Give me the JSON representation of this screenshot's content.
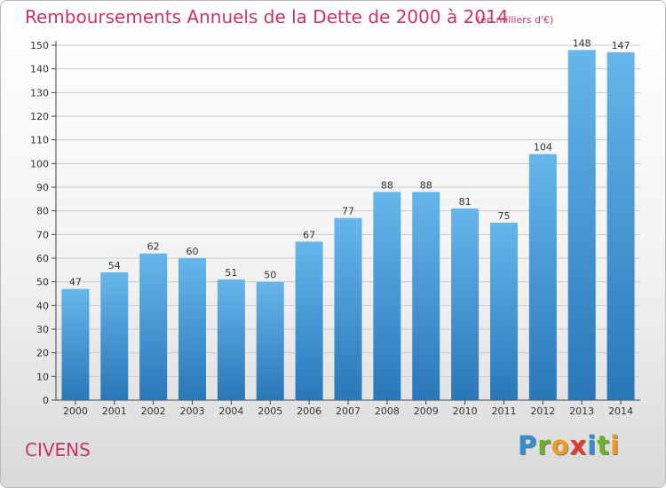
{
  "header": {
    "title": "Remboursements Annuels de la Dette de 2000 à 2014",
    "unit": "(en milliers d'€)"
  },
  "footer": {
    "place": "CIVENS",
    "logo_letters": [
      "P",
      "r",
      "o",
      "x",
      "i",
      "t",
      "i"
    ],
    "logo_colors": [
      "#2f8fd0",
      "#6ab02b",
      "#f29a1f",
      "#e23b2e",
      "#2f8fd0",
      "#6ab02b",
      "#f29a1f"
    ]
  },
  "colors": {
    "bar_top": "#66b6ec",
    "bar_bottom": "#2a77b8",
    "grid": "#c9c9c9",
    "axis": "#444444"
  },
  "chart_data": {
    "type": "bar",
    "title": "Remboursements Annuels de la Dette de 2000 à 2014",
    "subtitle": "(en milliers d'€)",
    "categories": [
      "2000",
      "2001",
      "2002",
      "2003",
      "2004",
      "2005",
      "2006",
      "2007",
      "2008",
      "2009",
      "2010",
      "2011",
      "2012",
      "2013",
      "2014"
    ],
    "values": [
      47,
      54,
      62,
      60,
      51,
      50,
      67,
      77,
      88,
      88,
      81,
      75,
      104,
      148,
      147
    ],
    "xlabel": "",
    "ylabel": "",
    "ylim": [
      0,
      150
    ],
    "yticks": [
      0,
      10,
      20,
      30,
      40,
      50,
      60,
      70,
      80,
      90,
      100,
      110,
      120,
      130,
      140,
      150
    ],
    "grid": true,
    "legend": "none"
  }
}
